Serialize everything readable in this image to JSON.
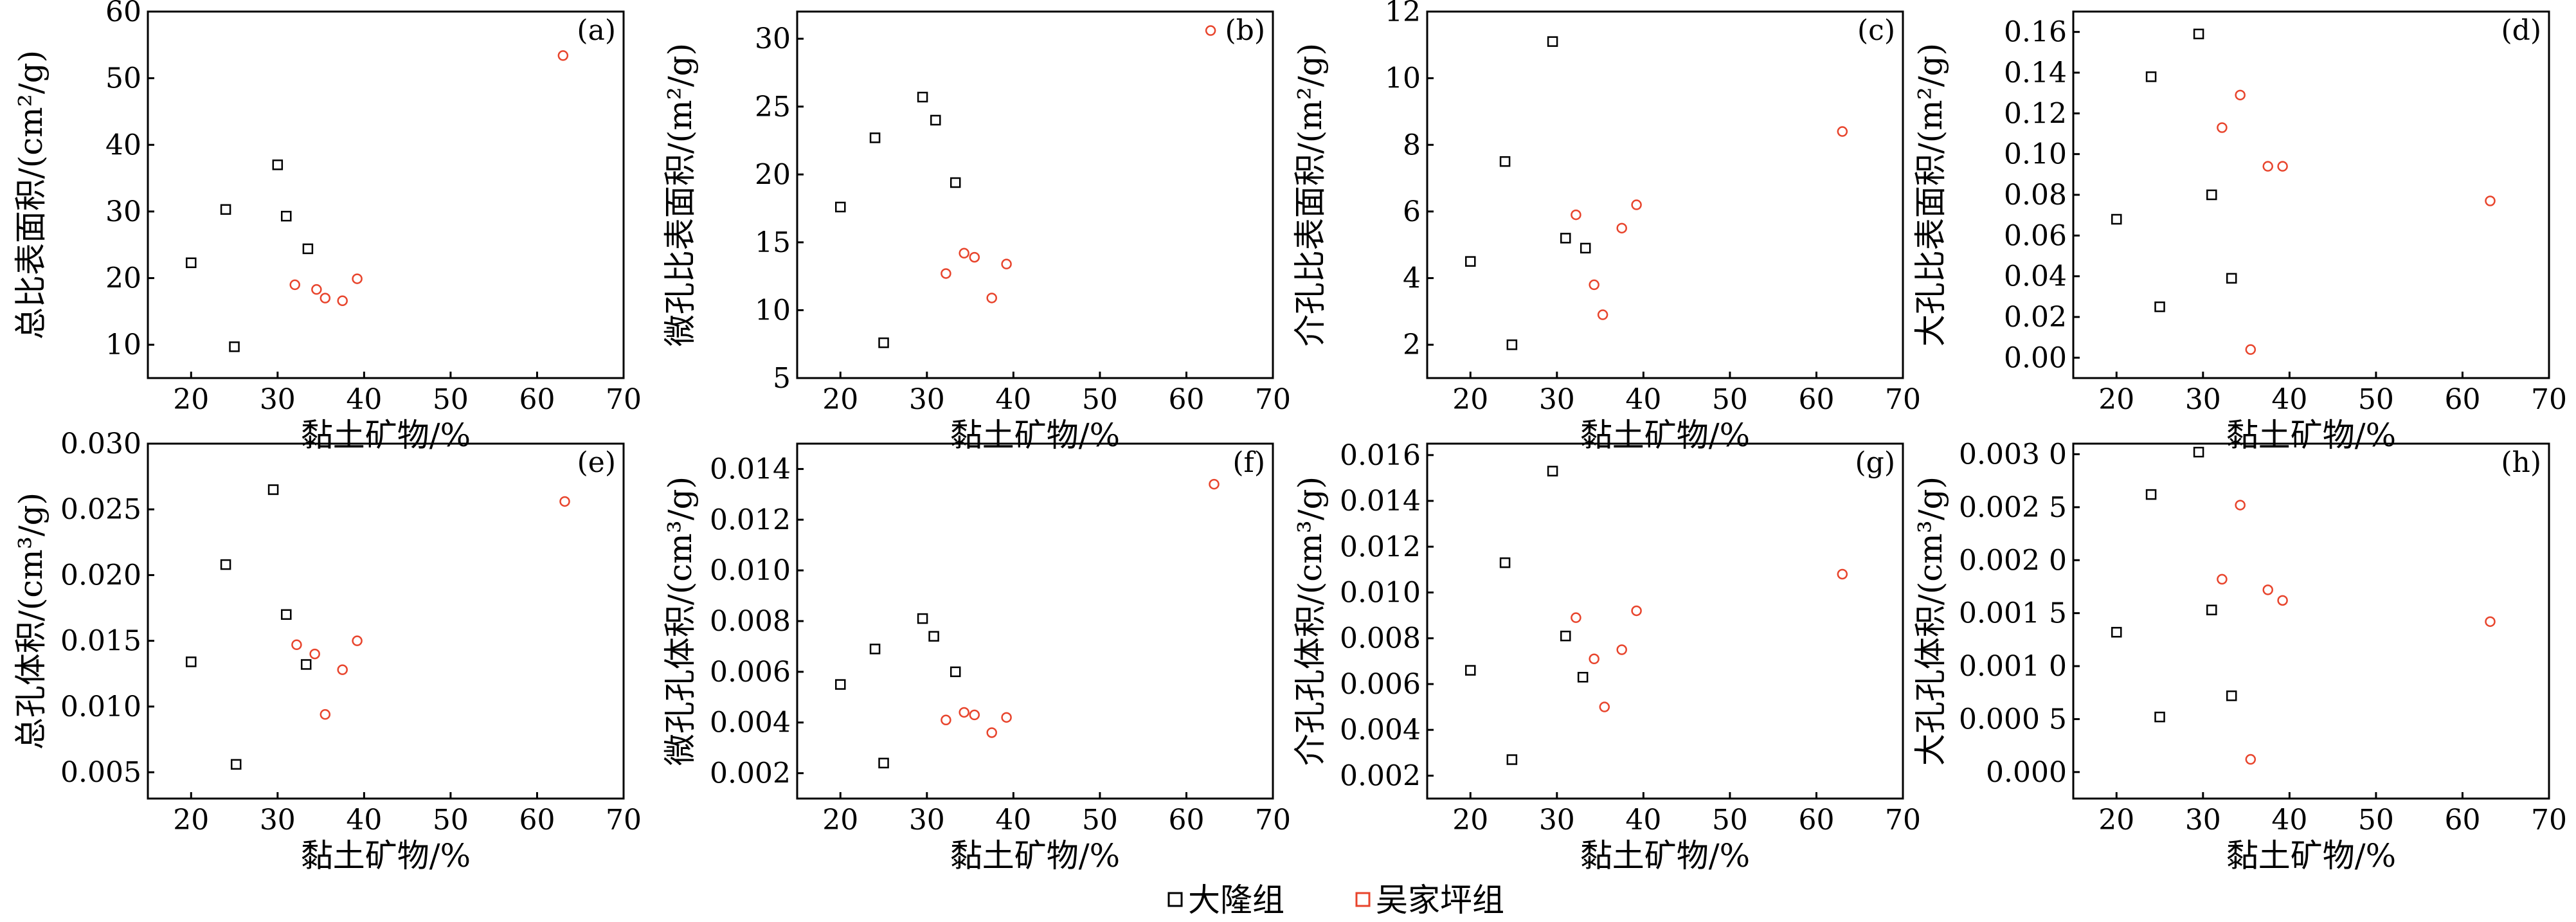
{
  "legend": [
    {
      "label": "大隆组",
      "color": "#000000"
    },
    {
      "label": "吴家坪组",
      "color": "#e8442c"
    }
  ],
  "chart_data": [
    {
      "type": "scatter",
      "panel": "(a)",
      "xlabel": "黏土矿物/%",
      "ylabel": "总比表面积/(cm²/g)",
      "xlim": [
        15,
        70
      ],
      "ylim": [
        5,
        60
      ],
      "xticks": [
        20,
        30,
        40,
        50,
        60,
        70
      ],
      "yticks": [
        10,
        20,
        30,
        40,
        50,
        60
      ],
      "ytick_labels": [
        "10",
        "20",
        "30",
        "40",
        "50",
        "60"
      ],
      "series": [
        {
          "name": "大隆组",
          "points": [
            [
              20,
              22.3
            ],
            [
              24,
              30.3
            ],
            [
              25,
              9.7
            ],
            [
              30,
              37
            ],
            [
              31,
              29.3
            ],
            [
              33.5,
              24.4
            ]
          ]
        },
        {
          "name": "吴家坪组",
          "points": [
            [
              32,
              19
            ],
            [
              34.5,
              18.3
            ],
            [
              35.5,
              17
            ],
            [
              37.5,
              16.6
            ],
            [
              39.2,
              19.9
            ],
            [
              63,
              53.4
            ]
          ]
        }
      ]
    },
    {
      "type": "scatter",
      "panel": "(b)",
      "xlabel": "黏土矿物/%",
      "ylabel": "微孔比表面积/(m²/g)",
      "xlim": [
        15,
        70
      ],
      "ylim": [
        5,
        32
      ],
      "xticks": [
        20,
        30,
        40,
        50,
        60,
        70
      ],
      "yticks": [
        5,
        10,
        15,
        20,
        25,
        30
      ],
      "ytick_labels": [
        "5",
        "10",
        "15",
        "20",
        "25",
        "30"
      ],
      "series": [
        {
          "name": "大隆组",
          "points": [
            [
              20,
              17.6
            ],
            [
              24,
              22.7
            ],
            [
              25,
              7.6
            ],
            [
              29.5,
              25.7
            ],
            [
              31,
              24
            ],
            [
              33.3,
              19.4
            ]
          ]
        },
        {
          "name": "吴家坪组",
          "points": [
            [
              32.2,
              12.7
            ],
            [
              34.3,
              14.2
            ],
            [
              35.5,
              13.9
            ],
            [
              37.5,
              10.9
            ],
            [
              39.2,
              13.4
            ],
            [
              62.8,
              30.6
            ]
          ]
        }
      ]
    },
    {
      "type": "scatter",
      "panel": "(c)",
      "xlabel": "黏土矿物/%",
      "ylabel": "介孔比表面积/(m²/g)",
      "xlim": [
        15,
        70
      ],
      "ylim": [
        1,
        12
      ],
      "xticks": [
        20,
        30,
        40,
        50,
        60,
        70
      ],
      "yticks": [
        2,
        4,
        6,
        8,
        10,
        12
      ],
      "ytick_labels": [
        "2",
        "4",
        "6",
        "8",
        "10",
        "12"
      ],
      "series": [
        {
          "name": "大隆组",
          "points": [
            [
              20,
              4.5
            ],
            [
              24,
              7.5
            ],
            [
              24.8,
              2
            ],
            [
              29.5,
              11.1
            ],
            [
              31,
              5.2
            ],
            [
              33.3,
              4.9
            ]
          ]
        },
        {
          "name": "吴家坪组",
          "points": [
            [
              32.2,
              5.9
            ],
            [
              34.3,
              3.8
            ],
            [
              35.3,
              2.9
            ],
            [
              37.5,
              5.5
            ],
            [
              39.2,
              6.2
            ],
            [
              63,
              8.4
            ]
          ]
        }
      ]
    },
    {
      "type": "scatter",
      "panel": "(d)",
      "xlabel": "黏土矿物/%",
      "ylabel": "大孔比表面积/(m²/g)",
      "xlim": [
        15,
        70
      ],
      "ylim": [
        -0.01,
        0.17
      ],
      "xticks": [
        20,
        30,
        40,
        50,
        60,
        70
      ],
      "yticks": [
        0,
        0.02,
        0.04,
        0.06,
        0.08,
        0.1,
        0.12,
        0.14,
        0.16
      ],
      "ytick_labels": [
        "0.00",
        "0.02",
        "0.04",
        "0.06",
        "0.08",
        "0.10",
        "0.12",
        "0.14",
        "0.16"
      ],
      "series": [
        {
          "name": "大隆组",
          "points": [
            [
              20,
              0.068
            ],
            [
              24,
              0.138
            ],
            [
              25,
              0.025
            ],
            [
              29.5,
              0.159
            ],
            [
              31,
              0.08
            ],
            [
              33.3,
              0.039
            ]
          ]
        },
        {
          "name": "吴家坪组",
          "points": [
            [
              32.2,
              0.113
            ],
            [
              34.3,
              0.129
            ],
            [
              35.5,
              0.004
            ],
            [
              37.5,
              0.094
            ],
            [
              39.2,
              0.094
            ],
            [
              63.2,
              0.077
            ]
          ]
        }
      ]
    },
    {
      "type": "scatter",
      "panel": "(e)",
      "xlabel": "黏土矿物/%",
      "ylabel": "总孔体积/(cm³/g)",
      "xlim": [
        15,
        70
      ],
      "ylim": [
        0.003,
        0.03
      ],
      "xticks": [
        20,
        30,
        40,
        50,
        60,
        70
      ],
      "yticks": [
        0.005,
        0.01,
        0.015,
        0.02,
        0.025,
        0.03
      ],
      "ytick_labels": [
        "0.005",
        "0.010",
        "0.015",
        "0.020",
        "0.025",
        "0.030"
      ],
      "series": [
        {
          "name": "大隆组",
          "points": [
            [
              20,
              0.0134
            ],
            [
              24,
              0.0208
            ],
            [
              25.2,
              0.0056
            ],
            [
              29.5,
              0.0265
            ],
            [
              31,
              0.017
            ],
            [
              33.3,
              0.0132
            ]
          ]
        },
        {
          "name": "吴家坪组",
          "points": [
            [
              32.2,
              0.0147
            ],
            [
              34.3,
              0.014
            ],
            [
              35.5,
              0.0094
            ],
            [
              37.5,
              0.0128
            ],
            [
              39.2,
              0.015
            ],
            [
              63.2,
              0.0256
            ]
          ]
        }
      ]
    },
    {
      "type": "scatter",
      "panel": "(f)",
      "xlabel": "黏土矿物/%",
      "ylabel": "微孔孔体积/(cm³/g)",
      "xlim": [
        15,
        70
      ],
      "ylim": [
        0.001,
        0.015
      ],
      "xticks": [
        20,
        30,
        40,
        50,
        60,
        70
      ],
      "yticks": [
        0.002,
        0.004,
        0.006,
        0.008,
        0.01,
        0.012,
        0.014
      ],
      "ytick_labels": [
        "0.002",
        "0.004",
        "0.006",
        "0.008",
        "0.010",
        "0.012",
        "0.014"
      ],
      "series": [
        {
          "name": "大隆组",
          "points": [
            [
              20,
              0.0055
            ],
            [
              24,
              0.0069
            ],
            [
              25,
              0.0024
            ],
            [
              29.5,
              0.0081
            ],
            [
              30.8,
              0.0074
            ],
            [
              33.3,
              0.006
            ]
          ]
        },
        {
          "name": "吴家坪组",
          "points": [
            [
              32.2,
              0.0041
            ],
            [
              34.3,
              0.0044
            ],
            [
              35.5,
              0.0043
            ],
            [
              37.5,
              0.0036
            ],
            [
              39.2,
              0.0042
            ],
            [
              63.2,
              0.0134
            ]
          ]
        }
      ]
    },
    {
      "type": "scatter",
      "panel": "(g)",
      "xlabel": "黏土矿物/%",
      "ylabel": "介孔孔体积/(cm³/g)",
      "xlim": [
        15,
        70
      ],
      "ylim": [
        0.001,
        0.0165
      ],
      "xticks": [
        20,
        30,
        40,
        50,
        60,
        70
      ],
      "yticks": [
        0.002,
        0.004,
        0.006,
        0.008,
        0.01,
        0.012,
        0.014,
        0.016
      ],
      "ytick_labels": [
        "0.002",
        "0.004",
        "0.006",
        "0.008",
        "0.010",
        "0.012",
        "0.014",
        "0.016"
      ],
      "series": [
        {
          "name": "大隆组",
          "points": [
            [
              20,
              0.0066
            ],
            [
              24,
              0.0113
            ],
            [
              24.8,
              0.0027
            ],
            [
              29.5,
              0.0153
            ],
            [
              31,
              0.0081
            ],
            [
              33,
              0.0063
            ]
          ]
        },
        {
          "name": "吴家坪组",
          "points": [
            [
              32.2,
              0.0089
            ],
            [
              34.3,
              0.0071
            ],
            [
              35.5,
              0.005
            ],
            [
              37.5,
              0.0075
            ],
            [
              39.2,
              0.0092
            ],
            [
              63,
              0.0108
            ]
          ]
        }
      ]
    },
    {
      "type": "scatter",
      "panel": "(h)",
      "xlabel": "黏土矿物/%",
      "ylabel": "大孔孔体积/(cm³/g)",
      "xlim": [
        15,
        70
      ],
      "ylim": [
        -0.00025,
        0.0031
      ],
      "xticks": [
        20,
        30,
        40,
        50,
        60,
        70
      ],
      "yticks": [
        0,
        0.0005,
        0.001,
        0.0015,
        0.002,
        0.0025,
        0.003
      ],
      "ytick_labels": [
        "0.000",
        "0.000 5",
        "0.001 0",
        "0.001 5",
        "0.002 0",
        "0.002 5",
        "0.003 0"
      ],
      "series": [
        {
          "name": "大隆组",
          "points": [
            [
              20,
              0.00132
            ],
            [
              24,
              0.00262
            ],
            [
              25,
              0.00052
            ],
            [
              29.5,
              0.00302
            ],
            [
              31,
              0.00153
            ],
            [
              33.3,
              0.00072
            ]
          ]
        },
        {
          "name": "吴家坪组",
          "points": [
            [
              32.2,
              0.00182
            ],
            [
              34.3,
              0.00252
            ],
            [
              35.5,
              0.00012
            ],
            [
              37.5,
              0.00172
            ],
            [
              39.2,
              0.00162
            ],
            [
              63.2,
              0.00142
            ]
          ]
        }
      ]
    }
  ]
}
